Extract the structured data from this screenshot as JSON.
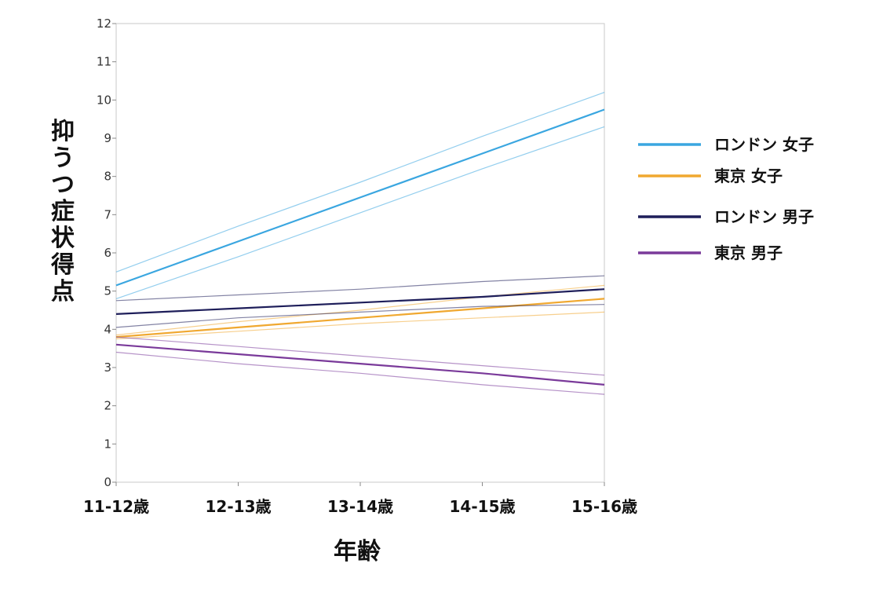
{
  "chart_data": {
    "type": "line",
    "xlabel": "年齢",
    "ylabel": "抑うつ症状得点",
    "categories": [
      "11-12歳",
      "12-13歳",
      "13-14歳",
      "14-15歳",
      "15-16歳"
    ],
    "ylim": [
      0,
      12
    ],
    "yticks": [
      0,
      1,
      2,
      3,
      4,
      5,
      6,
      7,
      8,
      9,
      10,
      11,
      12
    ],
    "grid": false,
    "legend_position": "right",
    "series": [
      {
        "name": "ロンドン 女子",
        "color": "#3aa6e0",
        "values": [
          5.15,
          6.3,
          7.45,
          8.6,
          9.75
        ],
        "lower": [
          4.8,
          5.9,
          7.05,
          8.2,
          9.3
        ],
        "upper": [
          5.5,
          6.7,
          7.85,
          9.05,
          10.2
        ]
      },
      {
        "name": "東京 女子",
        "color": "#f0a830",
        "values": [
          3.8,
          4.05,
          4.3,
          4.55,
          4.8
        ],
        "lower": [
          3.75,
          3.95,
          4.15,
          4.3,
          4.45
        ],
        "upper": [
          3.85,
          4.2,
          4.5,
          4.85,
          5.15
        ]
      },
      {
        "name": "ロンドン 男子",
        "color": "#1e1e5a",
        "values": [
          4.4,
          4.55,
          4.7,
          4.85,
          5.05
        ],
        "lower": [
          4.05,
          4.3,
          4.45,
          4.6,
          4.65
        ],
        "upper": [
          4.75,
          4.9,
          5.05,
          5.25,
          5.4
        ]
      },
      {
        "name": "東京 男子",
        "color": "#7a3a9a",
        "values": [
          3.6,
          3.35,
          3.1,
          2.85,
          2.55
        ],
        "lower": [
          3.4,
          3.1,
          2.85,
          2.55,
          2.3
        ],
        "upper": [
          3.8,
          3.55,
          3.3,
          3.05,
          2.8
        ]
      }
    ]
  }
}
